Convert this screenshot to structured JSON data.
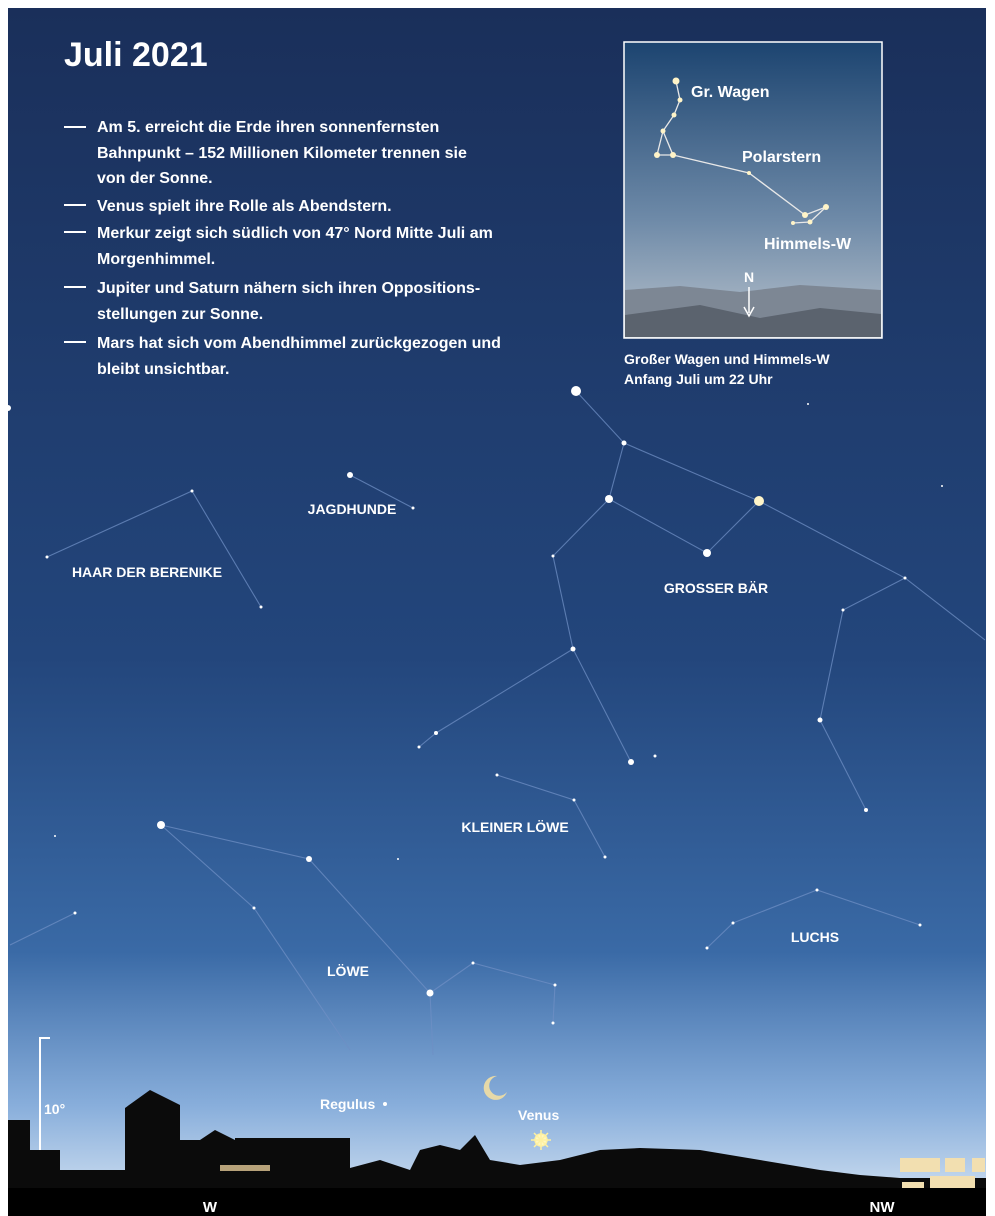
{
  "title": "Juli 2021",
  "notes": [
    [
      "Am 5. erreicht die Erde ihren sonnenfernsten",
      "Bahnpunkt – 152 Millionen Kilometer trennen sie",
      "von der Sonne."
    ],
    [
      "Venus spielt ihre Rolle als Abendstern."
    ],
    [
      "Merkur zeigt sich südlich von 47° Nord Mitte Juli am",
      "Morgenhimmel."
    ],
    [
      "Jupiter und Saturn nähern sich ihren Oppositions-",
      "stellungen zur Sonne."
    ],
    [
      "Mars hat sich vom Abendhimmel zurückgezogen und",
      "bleibt unsichtbar."
    ]
  ],
  "inset": {
    "labels": [
      "Gr. Wagen",
      "Polarstern",
      "Himmels-W"
    ],
    "north": "N",
    "caption": [
      "Großer Wagen und Himmels-W",
      "Anfang Juli um 22 Uhr"
    ]
  },
  "constellations": [
    "JAGDHUNDE",
    "HAAR DER BERENIKE",
    "GROSSER BÄR",
    "KLEINER LÖWE",
    "LUCHS",
    "LÖWE"
  ],
  "objects": [
    "Regulus",
    "Venus"
  ],
  "scale": "10°",
  "directions": [
    "W",
    "NW"
  ]
}
